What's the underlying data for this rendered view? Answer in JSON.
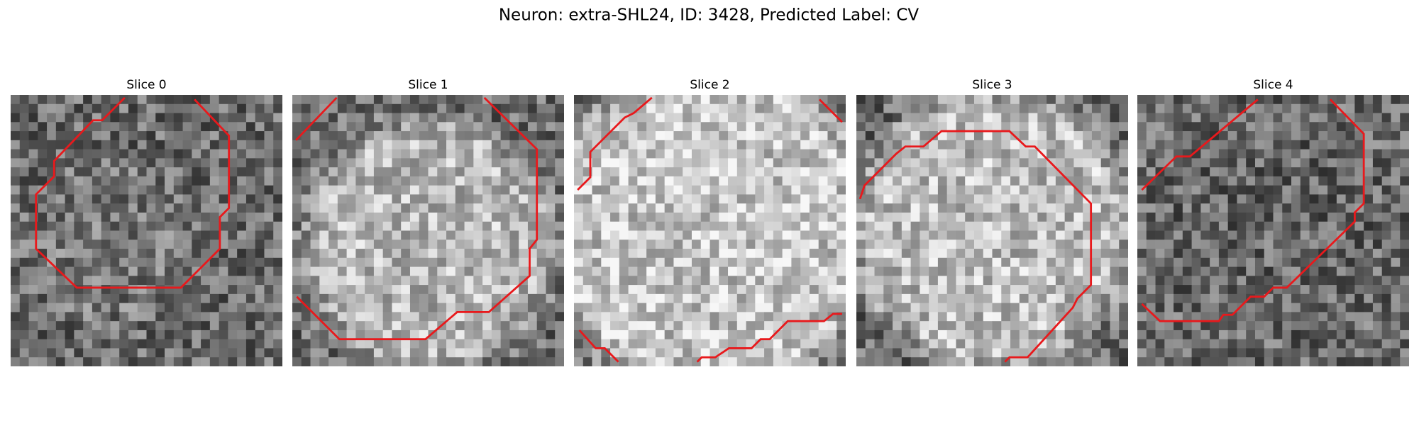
{
  "title": "Neuron: extra-SHL24, ID: 3428, Predicted Label: CV",
  "panels": [
    {
      "title": "Slice 0"
    },
    {
      "title": "Slice 1"
    },
    {
      "title": "Slice 2"
    },
    {
      "title": "Slice 3"
    },
    {
      "title": "Slice 4"
    }
  ]
}
